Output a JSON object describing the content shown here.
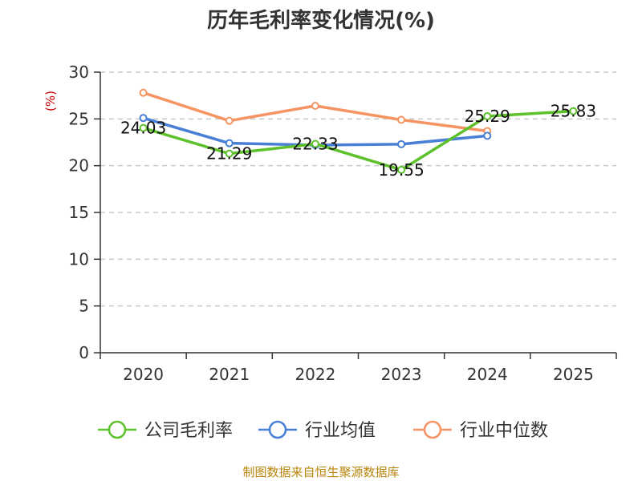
{
  "chart_data": {
    "type": "line",
    "title": "历年毛利率变化情况(%)",
    "ylabel": "(%)",
    "categories": [
      "2020",
      "2021",
      "2022",
      "2023",
      "2024",
      "2025"
    ],
    "yticks": [
      "0",
      "5",
      "10",
      "15",
      "20",
      "25",
      "30"
    ],
    "ylim": [
      0,
      30
    ],
    "grid": true,
    "legend_position": "bottom",
    "series": [
      {
        "name": "公司毛利率",
        "color": "#5dc12b",
        "values": [
          24.03,
          21.29,
          22.33,
          19.55,
          25.29,
          25.83
        ],
        "labels": [
          "24.03",
          "21.29",
          "22.33",
          "19.55",
          "25.29",
          "25.83"
        ]
      },
      {
        "name": "行业均值",
        "color": "#4a7fd6",
        "values": [
          25.1,
          22.4,
          22.2,
          22.3,
          23.2,
          null
        ],
        "labels": []
      },
      {
        "name": "行业中位数",
        "color": "#f59462",
        "values": [
          27.8,
          24.8,
          26.4,
          24.9,
          23.7,
          null
        ],
        "labels": []
      }
    ]
  },
  "source": "制图数据来自恒生聚源数据库"
}
